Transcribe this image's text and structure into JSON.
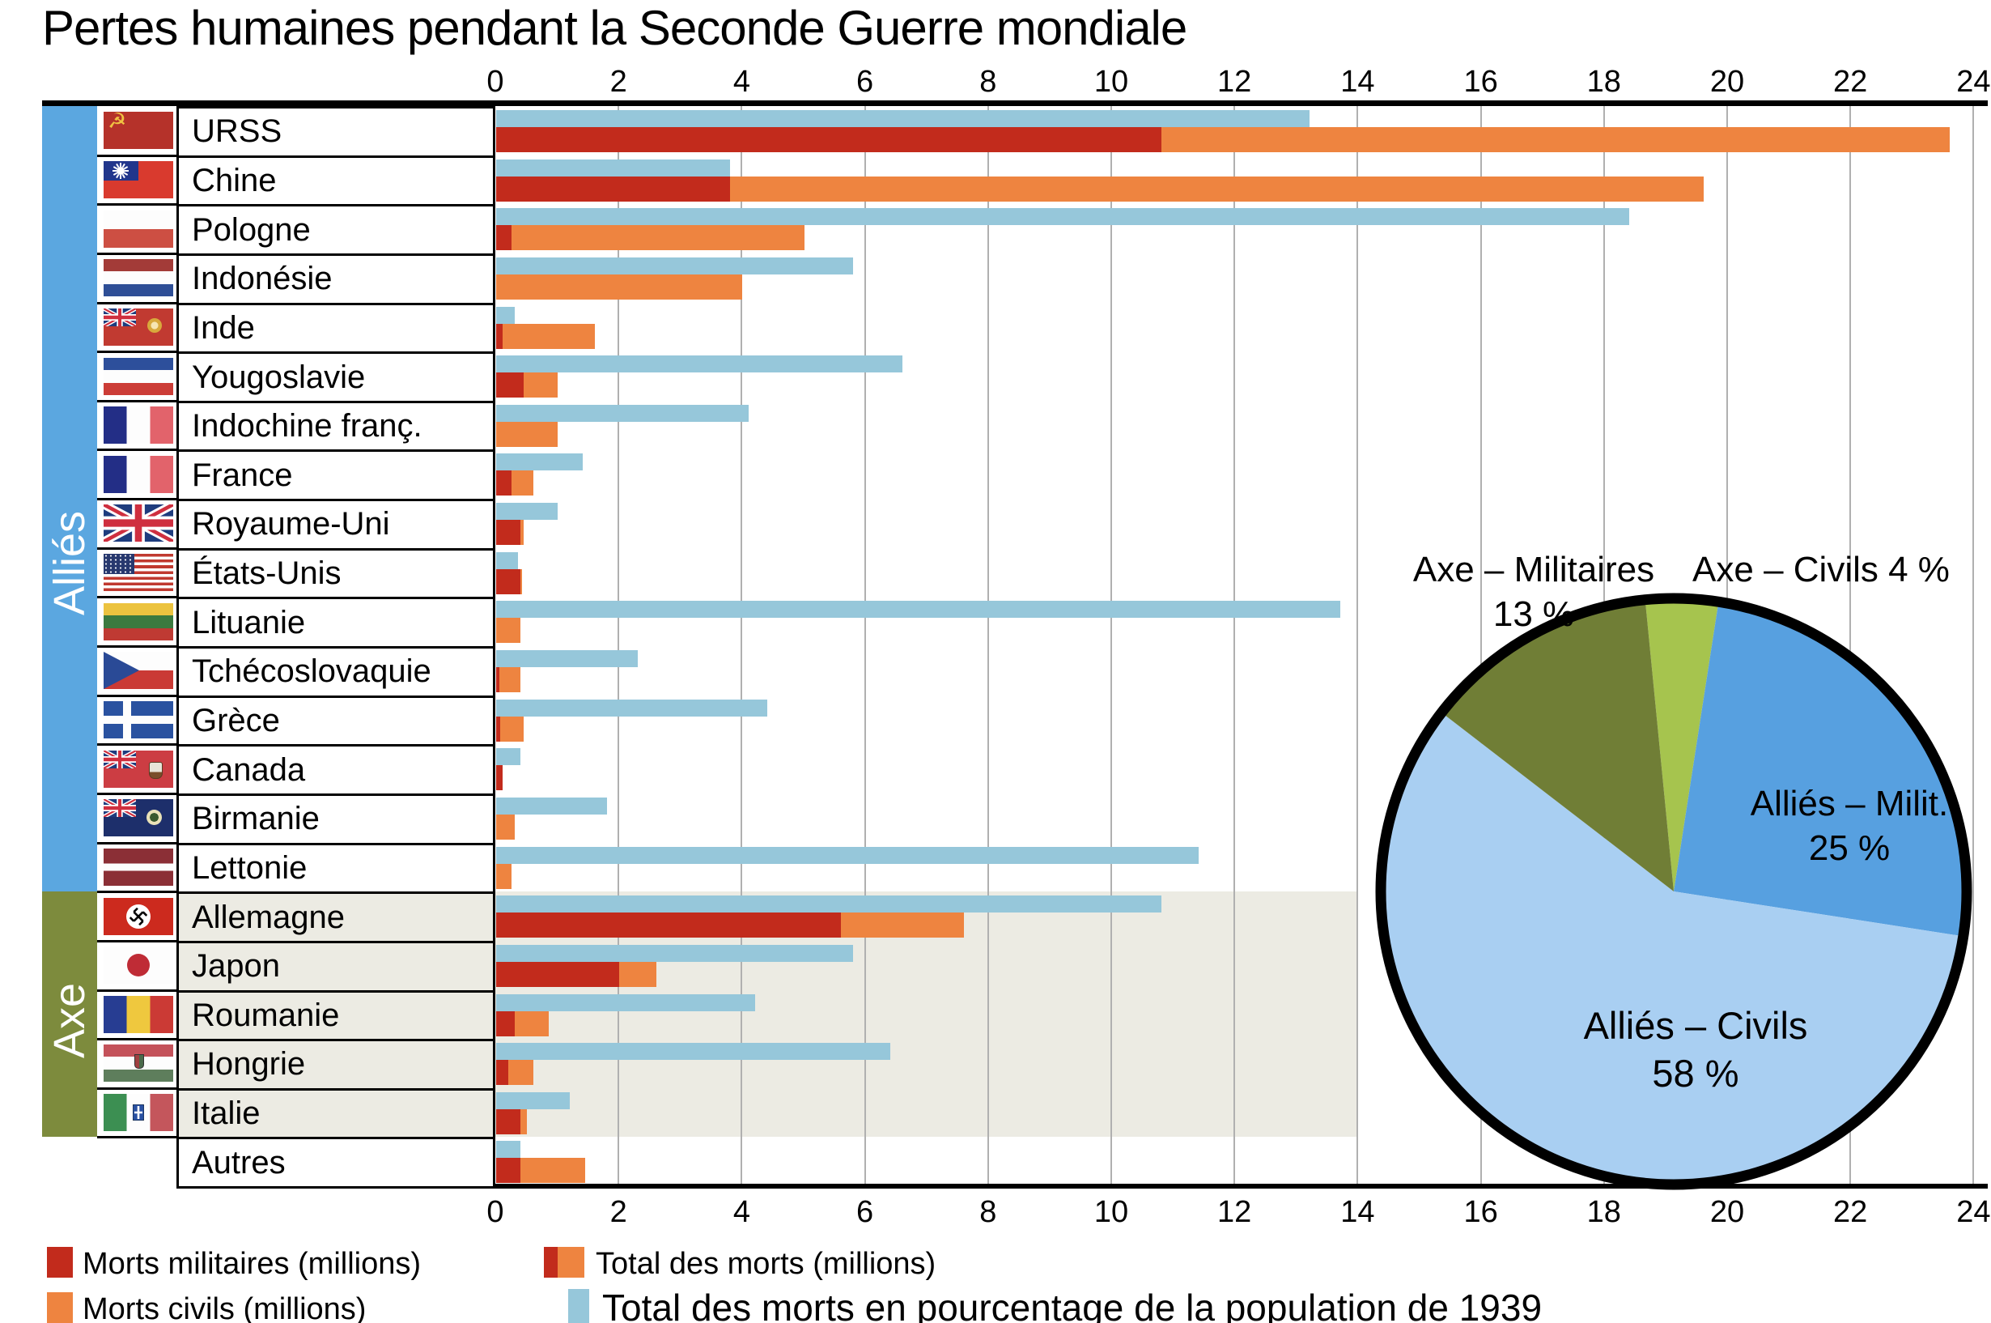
{
  "title": "Pertes humaines pendant la Seconde Guerre mondiale",
  "group_labels": {
    "allies": "Alliés",
    "axe": "Axe"
  },
  "legend": {
    "military": "Morts militaires (millions)",
    "civil": "Morts civils (millions)",
    "total": "Total des morts (millions)",
    "pct": "Total des morts en pourcentage de la population de 1939"
  },
  "colors": {
    "military_red": "#c22b1c",
    "civil_orange": "#ee8440",
    "pct_lightblue": "#96c7da",
    "band_allies_blue": "#5ba7e0",
    "band_axe_olive": "#7d8b3d",
    "axe_row_bg": "#ecebe3",
    "gridline": "#b0b0b0",
    "pie_axe_militaires": "#707e36",
    "pie_axe_civils": "#a6c44e",
    "pie_allies_militaires": "#57a0e0",
    "pie_allies_civils": "#a9cff2"
  },
  "pie_labels": {
    "axe_mil": "Axe – Militaires",
    "axe_mil_pct": "13 %",
    "axe_civ": "Axe – Civils 4 %",
    "allies_mil": "Alliés – Milit.",
    "allies_mil_pct": "25 %",
    "allies_civ": "Alliés – Civils",
    "allies_civ_pct": "58 %"
  },
  "chart_data": [
    {
      "type": "bar",
      "orientation": "horizontal",
      "title": "Pertes humaines pendant la Seconde Guerre mondiale",
      "xlabel": "",
      "ylabel": "",
      "xlim": [
        0,
        24
      ],
      "x_ticks": [
        0,
        2,
        4,
        6,
        8,
        10,
        12,
        14,
        16,
        18,
        20,
        22,
        24
      ],
      "grid": true,
      "series_names": [
        "Morts militaires (millions)",
        "Total des morts (millions)",
        "Total des morts en pourcentage de la population de 1939"
      ],
      "rows": [
        {
          "name": "URSS",
          "flag": "urss",
          "group": "allies",
          "military": 10.8,
          "total": 23.6,
          "pct_population": 13.2
        },
        {
          "name": "Chine",
          "flag": "chine",
          "group": "allies",
          "military": 3.8,
          "total": 19.6,
          "pct_population": 3.8
        },
        {
          "name": "Pologne",
          "flag": "pologne",
          "group": "allies",
          "military": 0.25,
          "total": 5.0,
          "pct_population": 18.4
        },
        {
          "name": "Indonésie",
          "flag": "indonesie",
          "group": "allies",
          "military": 0,
          "total": 4.0,
          "pct_population": 5.8
        },
        {
          "name": "Inde",
          "flag": "inde",
          "group": "allies",
          "military": 0.1,
          "total": 1.6,
          "pct_population": 0.3
        },
        {
          "name": "Yougoslavie",
          "flag": "yougoslavie",
          "group": "allies",
          "military": 0.45,
          "total": 1.0,
          "pct_population": 6.6
        },
        {
          "name": "Indochine franç.",
          "flag": "indochine",
          "group": "allies",
          "military": 0,
          "total": 1.0,
          "pct_population": 4.1
        },
        {
          "name": "France",
          "flag": "france",
          "group": "allies",
          "military": 0.25,
          "total": 0.6,
          "pct_population": 1.4
        },
        {
          "name": "Royaume-Uni",
          "flag": "royaume_uni",
          "group": "allies",
          "military": 0.4,
          "total": 0.45,
          "pct_population": 1.0
        },
        {
          "name": "États-Unis",
          "flag": "etats_unis",
          "group": "allies",
          "military": 0.4,
          "total": 0.42,
          "pct_population": 0.35
        },
        {
          "name": "Lituanie",
          "flag": "lituanie",
          "group": "allies",
          "military": 0,
          "total": 0.4,
          "pct_population": 13.7
        },
        {
          "name": "Tchécoslovaquie",
          "flag": "tchecoslovaquie",
          "group": "allies",
          "military": 0.05,
          "total": 0.4,
          "pct_population": 2.3
        },
        {
          "name": "Grèce",
          "flag": "grece",
          "group": "allies",
          "military": 0.06,
          "total": 0.45,
          "pct_population": 4.4
        },
        {
          "name": "Canada",
          "flag": "canada",
          "group": "allies",
          "military": 0.1,
          "total": 0.1,
          "pct_population": 0.4
        },
        {
          "name": "Birmanie",
          "flag": "birmanie",
          "group": "allies",
          "military": 0,
          "total": 0.3,
          "pct_population": 1.8
        },
        {
          "name": "Lettonie",
          "flag": "lettonie",
          "group": "allies",
          "military": 0,
          "total": 0.25,
          "pct_population": 11.4
        },
        {
          "name": "Allemagne",
          "flag": "allemagne",
          "group": "axe",
          "military": 5.6,
          "total": 7.6,
          "pct_population": 10.8
        },
        {
          "name": "Japon",
          "flag": "japon",
          "group": "axe",
          "military": 2.0,
          "total": 2.6,
          "pct_population": 5.8
        },
        {
          "name": "Roumanie",
          "flag": "roumanie",
          "group": "axe",
          "military": 0.3,
          "total": 0.85,
          "pct_population": 4.2
        },
        {
          "name": "Hongrie",
          "flag": "hongrie",
          "group": "axe",
          "military": 0.2,
          "total": 0.6,
          "pct_population": 6.4
        },
        {
          "name": "Italie",
          "flag": "italie",
          "group": "axe",
          "military": 0.4,
          "total": 0.5,
          "pct_population": 1.2
        },
        {
          "name": "Autres",
          "flag": null,
          "group": "autres",
          "military": 0.4,
          "total": 1.45,
          "pct_population": 0.4
        }
      ]
    },
    {
      "type": "pie",
      "start_angle_deg_from_top": -5.6,
      "direction": "clockwise",
      "slices": [
        {
          "label": "Axe – Civils",
          "pct": 4,
          "color": "#a6c44e"
        },
        {
          "label": "Alliés – Milit.",
          "pct": 25,
          "color": "#57a0e0"
        },
        {
          "label": "Alliés – Civils",
          "pct": 58,
          "color": "#a9cff2"
        },
        {
          "label": "Axe – Militaires",
          "pct": 13,
          "color": "#707e36"
        }
      ]
    }
  ]
}
